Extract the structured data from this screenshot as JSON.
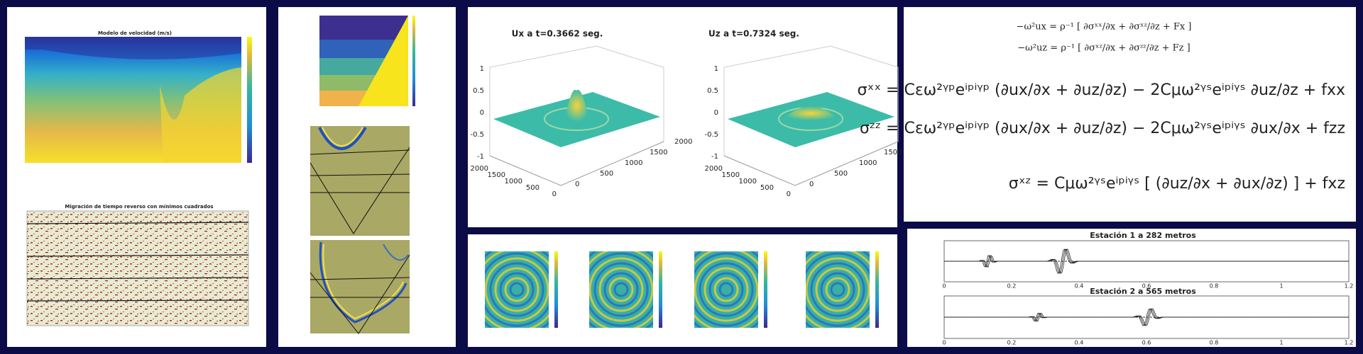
{
  "panels": {
    "velocity_model": {
      "title": "Modelo de velocidad (m/s)"
    },
    "migration": {
      "title": "Migración de tiempo reverso con mínimos cuadrados"
    },
    "snapshots": {
      "left_title": "Ux a t=0.3662 seg.",
      "right_title": "Uz a t=0.7324 seg.",
      "z_ticks": [
        "1",
        "0.5",
        "0",
        "-0.5",
        "-1"
      ],
      "xy_ticks": [
        "2000",
        "1500",
        "1000",
        "500",
        "0"
      ]
    },
    "equations": {
      "lines": [
        "−ω²ux = ρ⁻¹ [ ∂σˣˣ/∂x + ∂σˣᶻ/∂z + Fx ]",
        "−ω²uz = ρ⁻¹ [ ∂σˣᶻ/∂x + ∂σᶻᶻ/∂z + Fz ]",
        "σˣˣ = Cεω²ᵞᵖeⁱᵖⁱᵞᵖ (∂ux/∂x + ∂uz/∂z) − 2Cμω²ᵞˢeⁱᵖⁱᵞˢ ∂uz/∂z + fxx",
        "σᶻᶻ = Cεω²ᵞᵖeⁱᵖⁱᵞᵖ (∂ux/∂x + ∂uz/∂z) − 2Cμω²ᵞˢeⁱᵖⁱᵞˢ ∂ux/∂x + fzz",
        "σˣᶻ = Cμω²ᵞˢeⁱᵖⁱᵞˢ [ (∂uz/∂x + ∂ux/∂z) ] + fxz"
      ]
    },
    "seismograms": {
      "station1": "Estación 1 a 282 metros",
      "station2": "Estación 2 a 565 metros",
      "x_ticks": [
        "0",
        "0.2",
        "0.4",
        "0.6",
        "0.8",
        "1",
        "1.2"
      ]
    }
  }
}
